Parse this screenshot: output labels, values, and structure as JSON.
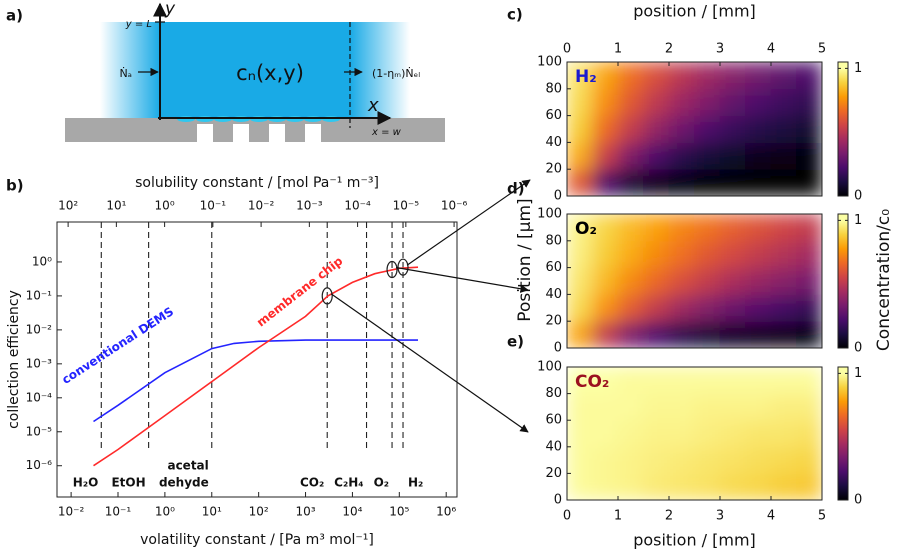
{
  "panel_a": {
    "label": "a)",
    "y_axis": "y",
    "y_top": "y = L",
    "inflow": "Ṅₐ",
    "concentration": "cₙ(x,y)",
    "outflow": "(1-ηₘ)Ṅₑₗ",
    "x_axis": "x",
    "x_end": "x = w"
  },
  "heatmap_shared": {
    "ylabel": "Position / [μm]",
    "colorbar_label": "Concentration/c₀",
    "colormap": [
      "#000004",
      "#1b0c41",
      "#4a0c6b",
      "#781c6d",
      "#a52c60",
      "#cf4446",
      "#ed6925",
      "#fb9b06",
      "#f7d13d",
      "#fcffa4"
    ]
  },
  "chart_data": [
    {
      "type": "line",
      "panel_label": "b)",
      "xscale": "log",
      "yscale": "log",
      "xlabel": "volatility constant / [Pa m³ mol⁻¹]",
      "x2label": "solubility constant / [mol Pa⁻¹ m⁻³]",
      "ylabel": "collection efficiency",
      "xlim": [
        0.005,
        1700000
      ],
      "xticks": [
        {
          "value": 0.01,
          "label": "10⁻²"
        },
        {
          "value": 0.1,
          "label": "10⁻¹"
        },
        {
          "value": 1,
          "label": "10⁰"
        },
        {
          "value": 10,
          "label": "10¹"
        },
        {
          "value": 100,
          "label": "10²"
        },
        {
          "value": 1000,
          "label": "10³"
        },
        {
          "value": 10000,
          "label": "10⁴"
        },
        {
          "value": 100000,
          "label": "10⁵"
        },
        {
          "value": 1000000,
          "label": "10⁶"
        }
      ],
      "x2lim": [
        170,
        8.7e-07
      ],
      "x2ticks": [
        {
          "value": 100,
          "label": "10²"
        },
        {
          "value": 10,
          "label": "10¹"
        },
        {
          "value": 1,
          "label": "10⁰"
        },
        {
          "value": 0.1,
          "label": "10⁻¹"
        },
        {
          "value": 0.01,
          "label": "10⁻²"
        },
        {
          "value": 0.001,
          "label": "10⁻³"
        },
        {
          "value": 0.0001,
          "label": "10⁻⁴"
        },
        {
          "value": 1e-05,
          "label": "10⁻⁵"
        },
        {
          "value": 1e-06,
          "label": "10⁻⁶"
        }
      ],
      "ylim": [
        1.2e-07,
        15
      ],
      "yticks": [
        {
          "value": 1e-06,
          "label": "10⁻⁶"
        },
        {
          "value": 1e-05,
          "label": "10⁻⁵"
        },
        {
          "value": 0.0001,
          "label": "10⁻⁴"
        },
        {
          "value": 0.001,
          "label": "10⁻³"
        },
        {
          "value": 0.01,
          "label": "10⁻²"
        },
        {
          "value": 0.1,
          "label": "10⁻¹"
        },
        {
          "value": 1,
          "label": "10⁰"
        }
      ],
      "series": [
        {
          "name": "conventional DEMS",
          "color": "#2424ff",
          "x": [
            0.03,
            0.1,
            1,
            10,
            30,
            100,
            1000,
            250000
          ],
          "values": [
            2e-05,
            6e-05,
            0.00055,
            0.0028,
            0.004,
            0.0046,
            0.005,
            0.005
          ]
        },
        {
          "name": "membrane chip",
          "color": "#ff2a2a",
          "x": [
            0.03,
            0.1,
            1,
            10,
            100,
            1000,
            3000,
            10000,
            30000,
            100000,
            250000
          ],
          "values": [
            1e-06,
            3e-06,
            3e-05,
            0.0003,
            0.003,
            0.025,
            0.1,
            0.25,
            0.45,
            0.65,
            0.7
          ]
        }
      ],
      "compounds": [
        {
          "name": [
            "H₂O"
          ],
          "x": 0.044
        },
        {
          "name": [
            "EtOH"
          ],
          "x": 0.45
        },
        {
          "name": [
            "acetal",
            "dehyde"
          ],
          "x": 10
        },
        {
          "name": [
            "CO₂"
          ],
          "x": 2900
        },
        {
          "name": [
            "C₂H₄"
          ],
          "x": 20000
        },
        {
          "name": [
            "O₂"
          ],
          "x": 70000
        },
        {
          "name": [
            "H₂"
          ],
          "x": 120000
        }
      ],
      "markers": {
        "x": [
          2900,
          70000,
          120000
        ],
        "values": [
          0.1,
          0.6,
          0.7
        ]
      }
    },
    {
      "type": "heatmap",
      "panel_label": "c)",
      "label": "H₂",
      "label_color": "#1a1ad0",
      "xaxis": "top",
      "xlabel": "position / [mm]",
      "xlim": [
        0,
        5
      ],
      "xticks": [
        0,
        1,
        2,
        3,
        4,
        5
      ],
      "ylim": [
        0,
        100
      ],
      "yticks": [
        0,
        20,
        40,
        60,
        80,
        100
      ],
      "clim": [
        0,
        1.05
      ],
      "cticks": [
        0,
        1
      ],
      "x": [
        0.25,
        0.75,
        1.25,
        1.75,
        2.25,
        2.75,
        3.25,
        3.75,
        4.25,
        4.75
      ],
      "y": [
        10,
        30,
        50,
        70,
        90
      ],
      "values": [
        [
          0.62,
          0.23,
          0.09,
          0.03,
          0.01,
          0,
          0,
          0,
          0,
          0
        ],
        [
          0.81,
          0.54,
          0.35,
          0.23,
          0.15,
          0.1,
          0.07,
          0.04,
          0.03,
          0.02
        ],
        [
          0.88,
          0.67,
          0.52,
          0.4,
          0.31,
          0.23,
          0.18,
          0.14,
          0.11,
          0.08
        ],
        [
          0.91,
          0.75,
          0.62,
          0.51,
          0.42,
          0.35,
          0.28,
          0.23,
          0.19,
          0.16
        ],
        [
          0.93,
          0.8,
          0.68,
          0.59,
          0.5,
          0.43,
          0.37,
          0.32,
          0.27,
          0.23
        ]
      ]
    },
    {
      "type": "heatmap",
      "panel_label": "d)",
      "label": "O₂",
      "label_color": "#000000",
      "xaxis": "none",
      "xlim": [
        0,
        5
      ],
      "ylim": [
        0,
        100
      ],
      "yticks": [
        0,
        20,
        40,
        60,
        80,
        100
      ],
      "clim": [
        0,
        1.05
      ],
      "cticks": [
        0,
        1
      ],
      "x": [
        0.25,
        0.75,
        1.25,
        1.75,
        2.25,
        2.75,
        3.25,
        3.75,
        4.25,
        4.75
      ],
      "y": [
        10,
        30,
        50,
        70,
        90
      ],
      "values": [
        [
          0.8,
          0.52,
          0.34,
          0.22,
          0.14,
          0.09,
          0.06,
          0.04,
          0.03,
          0.02
        ],
        [
          0.91,
          0.76,
          0.63,
          0.52,
          0.43,
          0.36,
          0.3,
          0.25,
          0.21,
          0.17
        ],
        [
          0.94,
          0.84,
          0.74,
          0.66,
          0.59,
          0.52,
          0.46,
          0.41,
          0.37,
          0.33
        ],
        [
          0.96,
          0.88,
          0.81,
          0.74,
          0.68,
          0.62,
          0.57,
          0.52,
          0.48,
          0.44
        ],
        [
          0.97,
          0.9,
          0.84,
          0.79,
          0.73,
          0.69,
          0.64,
          0.6,
          0.56,
          0.52
        ]
      ]
    },
    {
      "type": "heatmap",
      "panel_label": "e)",
      "label": "CO₂",
      "label_color": "#9b1020",
      "xaxis": "bottom",
      "xlabel": "position / [mm]",
      "xlim": [
        0,
        5
      ],
      "xticks": [
        0,
        1,
        2,
        3,
        4,
        5
      ],
      "ylim": [
        0,
        100
      ],
      "yticks": [
        0,
        20,
        40,
        60,
        80,
        100
      ],
      "clim": [
        0,
        1.05
      ],
      "cticks": [
        0,
        1
      ],
      "x": [
        0.25,
        0.75,
        1.25,
        1.75,
        2.25,
        2.75,
        3.25,
        3.75,
        4.25,
        4.75
      ],
      "y": [
        10,
        30,
        50,
        70,
        90
      ],
      "values": [
        [
          0.99,
          0.98,
          0.97,
          0.95,
          0.94,
          0.93,
          0.91,
          0.9,
          0.88,
          0.87
        ],
        [
          0.99,
          0.98,
          0.97,
          0.96,
          0.95,
          0.94,
          0.93,
          0.92,
          0.91,
          0.9
        ],
        [
          0.99,
          0.99,
          0.98,
          0.97,
          0.97,
          0.96,
          0.95,
          0.94,
          0.94,
          0.93
        ],
        [
          0.99,
          0.99,
          0.99,
          0.98,
          0.98,
          0.97,
          0.97,
          0.97,
          0.96,
          0.96
        ],
        [
          1,
          1,
          0.99,
          0.99,
          0.99,
          0.99,
          0.99,
          0.99,
          0.99,
          0.99
        ]
      ]
    }
  ]
}
